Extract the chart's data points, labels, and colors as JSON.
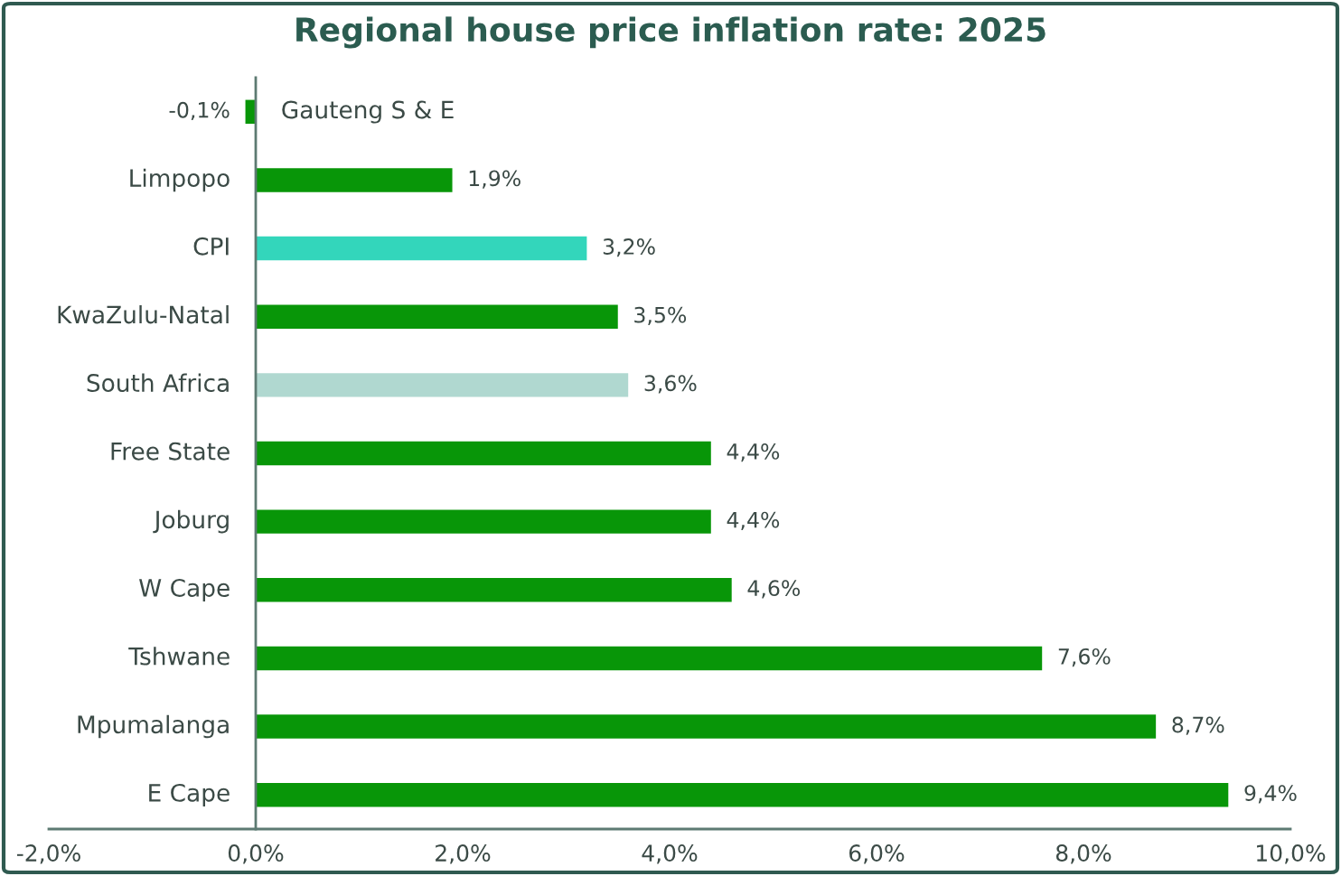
{
  "chart_data": {
    "type": "bar",
    "orientation": "horizontal",
    "title": "Regional house price inflation rate: 2025",
    "categories": [
      "Gauteng S & E",
      "Limpopo",
      "CPI",
      "KwaZulu-Natal",
      "South Africa",
      "Free State",
      "Joburg",
      "W Cape",
      "Tshwane",
      "Mpumalanga",
      "E Cape"
    ],
    "values": [
      -0.1,
      1.9,
      3.2,
      3.5,
      3.6,
      4.4,
      4.4,
      4.6,
      7.6,
      8.7,
      9.4
    ],
    "colors": [
      "#089608",
      "#089608",
      "#33d6bb",
      "#089608",
      "#b0d8d0",
      "#089608",
      "#089608",
      "#089608",
      "#089608",
      "#089608",
      "#089608"
    ],
    "value_labels": [
      "-0,1%",
      "1,9%",
      "3,2%",
      "3,5%",
      "3,6%",
      "4,4%",
      "4,4%",
      "4,6%",
      "7,6%",
      "8,7%",
      "9,4%"
    ],
    "xlim": [
      -2,
      10
    ],
    "xticks": [
      {
        "value": -2,
        "label": "-2,0%"
      },
      {
        "value": 0,
        "label": "0,0%"
      },
      {
        "value": 2,
        "label": "2,0%"
      },
      {
        "value": 4,
        "label": "4,0%"
      },
      {
        "value": 6,
        "label": "6,0%"
      },
      {
        "value": 8,
        "label": "8,0%"
      },
      {
        "value": 10,
        "label": "10,0%"
      }
    ],
    "grid": false,
    "legend": false
  }
}
